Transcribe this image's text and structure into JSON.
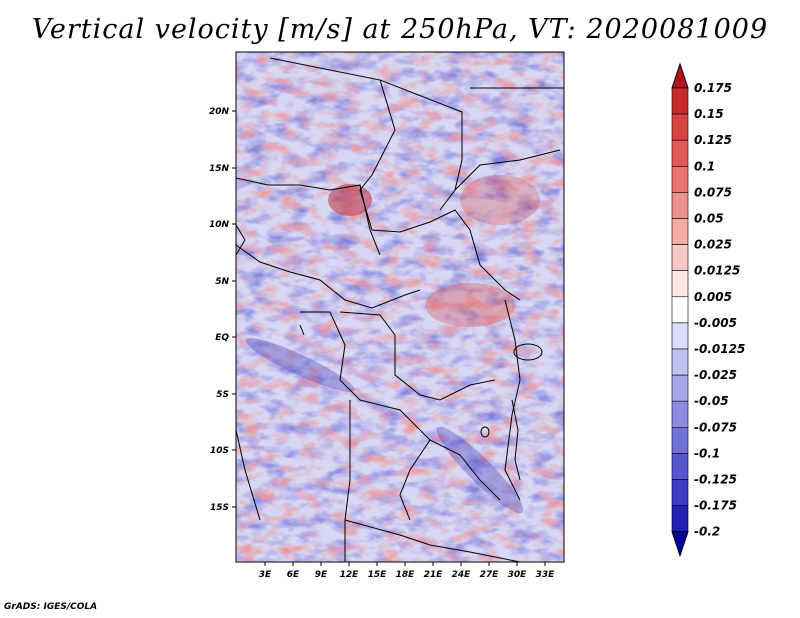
{
  "title": "Vertical velocity [m/s] at 250hPa, VT: 2020081009",
  "credit": "GrADS: IGES/COLA",
  "map": {
    "lat_labels": [
      "20N",
      "15N",
      "10N",
      "5N",
      "EQ",
      "5S",
      "10S",
      "15S"
    ],
    "lon_labels": [
      "3E",
      "6E",
      "9E",
      "12E",
      "15E",
      "18E",
      "21E",
      "24E",
      "27E",
      "30E",
      "33E"
    ]
  },
  "colorbar": {
    "labels": [
      "0.175",
      "0.15",
      "0.125",
      "0.1",
      "0.075",
      "0.05",
      "0.025",
      "0.0125",
      "0.005",
      "-0.005",
      "-0.0125",
      "-0.025",
      "-0.05",
      "-0.075",
      "-0.1",
      "-0.125",
      "-0.175",
      "-0.2"
    ],
    "colors": [
      "#b0151f",
      "#c62a2a",
      "#d94242",
      "#e45a58",
      "#ea7572",
      "#ef918c",
      "#f3aca7",
      "#f7c8c4",
      "#fbe4e2",
      "#ffffff",
      "#dcdcf8",
      "#c1c1f2",
      "#a7a7ec",
      "#8c8ce4",
      "#7272db",
      "#5757d1",
      "#3d3dc6",
      "#2020b4",
      "#0000a0"
    ]
  }
}
